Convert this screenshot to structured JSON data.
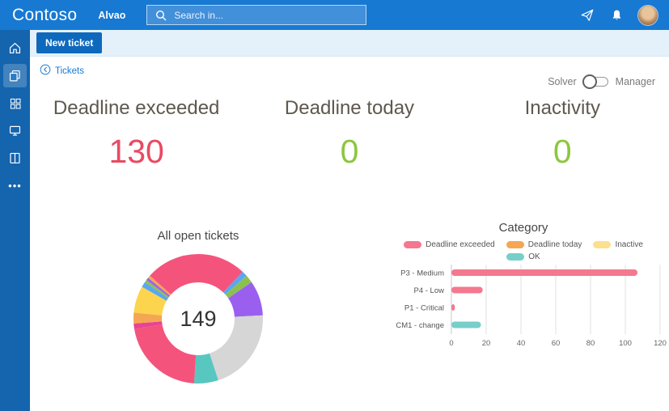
{
  "header": {
    "brand": "Contoso",
    "app_name": "Alvao",
    "search_placeholder": "Search in..."
  },
  "toolbar": {
    "new_ticket": "New ticket"
  },
  "nav": {
    "back_link": "Tickets"
  },
  "view_toggle": {
    "left": "Solver",
    "right": "Manager",
    "selected": "Solver"
  },
  "kpis": [
    {
      "label": "Deadline exceeded",
      "value": "130",
      "color": "#e84a63"
    },
    {
      "label": "Deadline today",
      "value": "0",
      "color": "#8dc63f"
    },
    {
      "label": "Inactivity",
      "value": "0",
      "color": "#8dc63f"
    }
  ],
  "chart_data": [
    {
      "type": "pie",
      "title": "All open tickets",
      "center_total": "149",
      "slices": [
        {
          "value": 18,
          "color": "#f4547c"
        },
        {
          "value": 2,
          "color": "#5aa7f0"
        },
        {
          "value": 3,
          "color": "#8cc152"
        },
        {
          "value": 13,
          "color": "#9b5ff0"
        },
        {
          "value": 31,
          "color": "#d6d6d6"
        },
        {
          "value": 9,
          "color": "#58c7c0"
        },
        {
          "value": 32,
          "color": "#f4547c"
        },
        {
          "value": 2,
          "color": "#e84393"
        },
        {
          "value": 4,
          "color": "#f5a653"
        },
        {
          "value": 10,
          "color": "#fdd44e"
        },
        {
          "value": 2,
          "color": "#5aa7f0"
        },
        {
          "value": 1,
          "color": "#8cc152"
        },
        {
          "value": 1,
          "color": "#9b5ff0"
        },
        {
          "value": 1,
          "color": "#f5a653"
        },
        {
          "value": 20,
          "color": "#f4547c"
        }
      ]
    },
    {
      "type": "bar",
      "title": "Category",
      "orientation": "horizontal",
      "categories": [
        "P3 - Medium",
        "P4 - Low",
        "P1 - Critical",
        "CM1 - change"
      ],
      "series": [
        {
          "name": "Deadline exceeded",
          "color": "#f4788f",
          "values": [
            107,
            18,
            2,
            0
          ]
        },
        {
          "name": "Deadline today",
          "color": "#f5a653",
          "values": [
            0,
            0,
            0,
            0
          ]
        },
        {
          "name": "Inactive",
          "color": "#fce08e",
          "values": [
            0,
            0,
            0,
            0
          ]
        },
        {
          "name": "OK",
          "color": "#76cfc9",
          "values": [
            0,
            0,
            0,
            17
          ]
        }
      ],
      "xlim": [
        0,
        120
      ],
      "xticks": [
        0,
        20,
        40,
        60,
        80,
        100,
        120
      ],
      "grid": true,
      "legend_position": "top"
    }
  ]
}
